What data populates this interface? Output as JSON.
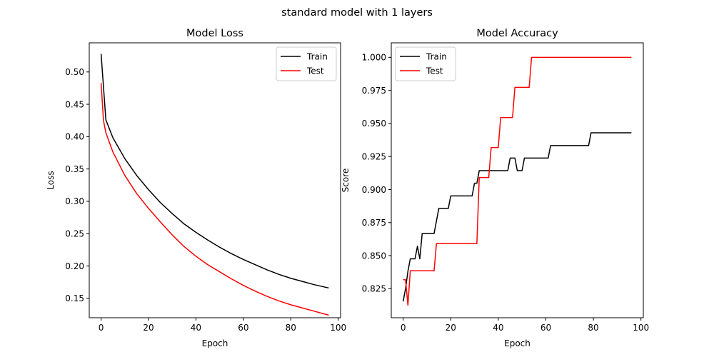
{
  "figure": {
    "suptitle": "standard model with 1 layers"
  },
  "chart_data": [
    {
      "type": "line",
      "title": "Model Loss",
      "xlabel": "Epoch",
      "ylabel": "Loss",
      "xlim": [
        -5,
        101
      ],
      "ylim": [
        0.12,
        0.545
      ],
      "xticks": [
        0,
        20,
        40,
        60,
        80,
        100
      ],
      "yticks": [
        0.15,
        0.2,
        0.25,
        0.3,
        0.35,
        0.4,
        0.45,
        0.5
      ],
      "xtick_labels": [
        "0",
        "20",
        "40",
        "60",
        "80",
        "100"
      ],
      "ytick_labels": [
        "0.15",
        "0.20",
        "0.25",
        "0.30",
        "0.35",
        "0.40",
        "0.45",
        "0.50"
      ],
      "legend_position": "upper-right",
      "grid": false,
      "series": [
        {
          "name": "Train",
          "color": "#000000",
          "x": [
            0,
            2,
            5,
            10,
            15,
            20,
            25,
            30,
            35,
            40,
            45,
            50,
            55,
            60,
            65,
            70,
            75,
            80,
            85,
            90,
            96
          ],
          "y": [
            0.528,
            0.426,
            0.398,
            0.366,
            0.34,
            0.318,
            0.298,
            0.281,
            0.265,
            0.252,
            0.24,
            0.229,
            0.219,
            0.21,
            0.202,
            0.194,
            0.187,
            0.181,
            0.176,
            0.171,
            0.166
          ]
        },
        {
          "name": "Test",
          "color": "#ff0000",
          "x": [
            0,
            1,
            2,
            5,
            10,
            15,
            20,
            25,
            30,
            35,
            40,
            45,
            50,
            55,
            60,
            65,
            70,
            75,
            80,
            85,
            90,
            96
          ],
          "y": [
            0.483,
            0.425,
            0.406,
            0.376,
            0.34,
            0.312,
            0.289,
            0.268,
            0.248,
            0.23,
            0.215,
            0.202,
            0.191,
            0.18,
            0.17,
            0.161,
            0.153,
            0.146,
            0.14,
            0.135,
            0.13,
            0.124
          ]
        }
      ]
    },
    {
      "type": "line",
      "title": "Model Accuracy",
      "xlabel": "Epoch",
      "ylabel": "Score",
      "xlim": [
        -5,
        101
      ],
      "ylim": [
        0.803,
        1.011
      ],
      "xticks": [
        0,
        20,
        40,
        60,
        80,
        100
      ],
      "yticks": [
        0.825,
        0.85,
        0.875,
        0.9,
        0.925,
        0.95,
        0.975,
        1.0
      ],
      "xtick_labels": [
        "0",
        "20",
        "40",
        "60",
        "80",
        "100"
      ],
      "ytick_labels": [
        "0.825",
        "0.850",
        "0.875",
        "0.900",
        "0.925",
        "0.950",
        "0.975",
        "1.000"
      ],
      "legend_position": "upper-left",
      "grid": false,
      "series": [
        {
          "name": "Train",
          "color": "#000000",
          "x": [
            0,
            1,
            2,
            3,
            4,
            5,
            6,
            7,
            8,
            9,
            13,
            14,
            15,
            16,
            19,
            20,
            21,
            29,
            30,
            31,
            32,
            44,
            45,
            47,
            48,
            50,
            51,
            61,
            62,
            78,
            79,
            96
          ],
          "y": [
            0.8154,
            0.825,
            0.8381,
            0.8476,
            0.8476,
            0.8476,
            0.8571,
            0.8476,
            0.8667,
            0.8667,
            0.8667,
            0.8762,
            0.8857,
            0.8857,
            0.8857,
            0.8952,
            0.8952,
            0.8952,
            0.9048,
            0.9048,
            0.9143,
            0.9143,
            0.9238,
            0.9238,
            0.9143,
            0.9143,
            0.9238,
            0.9238,
            0.9333,
            0.9333,
            0.9429,
            0.9429
          ]
        },
        {
          "name": "Test",
          "color": "#ff0000",
          "x": [
            0,
            1,
            2,
            3,
            13,
            14,
            31,
            32,
            36,
            37,
            40,
            41,
            46,
            47,
            53,
            54,
            96
          ],
          "y": [
            0.8318,
            0.8318,
            0.8125,
            0.8385,
            0.8385,
            0.8591,
            0.8591,
            0.9091,
            0.9091,
            0.9318,
            0.9318,
            0.9545,
            0.9545,
            0.9773,
            0.9773,
            1.0,
            1.0
          ]
        }
      ]
    }
  ]
}
